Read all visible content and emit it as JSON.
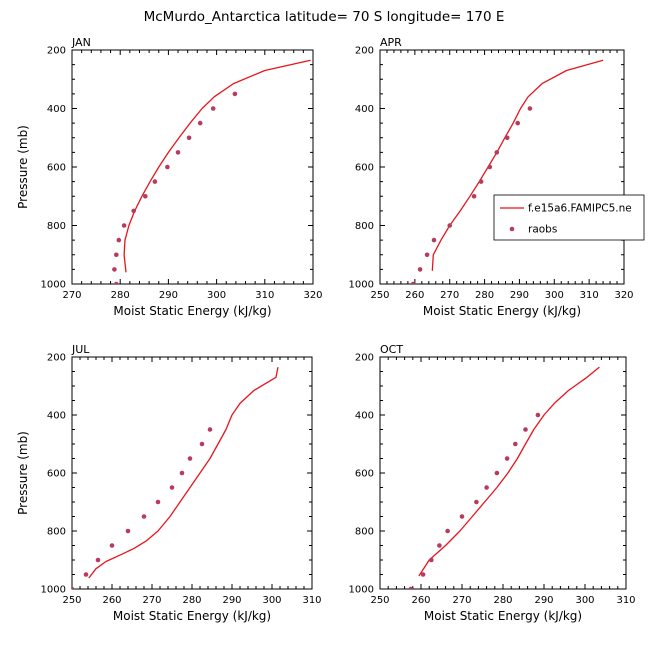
{
  "figure": {
    "title": "McMurdo_Antarctica  latitude= 70 S longitude= 170 E"
  },
  "legend": {
    "model_label": "f.e15a6.FAMIPC5.ne",
    "obs_label": "raobs",
    "model_color": "#e8141c",
    "obs_color": "#b83a5c"
  },
  "chart_data": [
    {
      "type": "line",
      "panel": "JAN",
      "title": "JAN",
      "xlabel": "Moist Static Energy (kJ/kg)",
      "ylabel": "Pressure (mb)",
      "xlim": [
        270,
        320
      ],
      "ylim": [
        1000,
        200
      ],
      "xticks": [
        270,
        280,
        290,
        300,
        310,
        320
      ],
      "yticks": [
        200,
        400,
        600,
        800,
        1000
      ],
      "series": [
        {
          "name": "f.e15a6.FAMIPC5.ne",
          "kind": "line",
          "points": [
            [
              281.2,
              960
            ],
            [
              280.8,
              900
            ],
            [
              281.0,
              850
            ],
            [
              281.8,
              800
            ],
            [
              283.0,
              750
            ],
            [
              284.5,
              700
            ],
            [
              286.2,
              650
            ],
            [
              288.0,
              600
            ],
            [
              290.0,
              550
            ],
            [
              292.2,
              500
            ],
            [
              294.5,
              450
            ],
            [
              297.0,
              400
            ],
            [
              299.5,
              360
            ],
            [
              303.5,
              315
            ],
            [
              310.0,
              270
            ],
            [
              319.5,
              235
            ]
          ]
        },
        {
          "name": "raobs",
          "kind": "scatter",
          "points": [
            [
              279.2,
              1000
            ],
            [
              278.8,
              950
            ],
            [
              279.2,
              900
            ],
            [
              279.7,
              850
            ],
            [
              280.8,
              800
            ],
            [
              282.8,
              750
            ],
            [
              285.2,
              700
            ],
            [
              287.2,
              650
            ],
            [
              289.8,
              600
            ],
            [
              292.0,
              550
            ],
            [
              294.3,
              500
            ],
            [
              296.6,
              450
            ],
            [
              299.3,
              400
            ],
            [
              303.8,
              350
            ]
          ]
        }
      ]
    },
    {
      "type": "line",
      "panel": "APR",
      "title": "APR",
      "xlabel": "Moist Static Energy (kJ/kg)",
      "ylabel": "",
      "xlim": [
        250,
        320
      ],
      "ylim": [
        1000,
        200
      ],
      "xticks": [
        250,
        260,
        270,
        280,
        290,
        300,
        310,
        320
      ],
      "yticks": [
        200,
        400,
        600,
        800,
        1000
      ],
      "series": [
        {
          "name": "f.e15a6.FAMIPC5.ne",
          "kind": "line",
          "points": [
            [
              265.0,
              955
            ],
            [
              265.3,
              900
            ],
            [
              267.5,
              850
            ],
            [
              270.0,
              800
            ],
            [
              273.0,
              750
            ],
            [
              275.8,
              700
            ],
            [
              278.5,
              650
            ],
            [
              281.0,
              600
            ],
            [
              283.5,
              550
            ],
            [
              285.8,
              500
            ],
            [
              288.2,
              450
            ],
            [
              290.3,
              400
            ],
            [
              292.5,
              360
            ],
            [
              296.5,
              315
            ],
            [
              303.5,
              270
            ],
            [
              314.0,
              235
            ]
          ]
        },
        {
          "name": "raobs",
          "kind": "scatter",
          "points": [
            [
              259.5,
              1000
            ],
            [
              261.5,
              950
            ],
            [
              263.5,
              900
            ],
            [
              265.5,
              850
            ],
            [
              270.0,
              800
            ],
            [
              277.0,
              700
            ],
            [
              279.0,
              650
            ],
            [
              281.5,
              600
            ],
            [
              283.5,
              550
            ],
            [
              286.5,
              500
            ],
            [
              289.5,
              450
            ],
            [
              293.0,
              400
            ]
          ]
        }
      ]
    },
    {
      "type": "line",
      "panel": "JUL",
      "title": "JUL",
      "xlabel": "Moist Static Energy (kJ/kg)",
      "ylabel": "Pressure (mb)",
      "xlim": [
        250,
        310
      ],
      "ylim": [
        1000,
        200
      ],
      "xticks": [
        250,
        260,
        270,
        280,
        290,
        300,
        310
      ],
      "yticks": [
        200,
        400,
        600,
        800,
        1000
      ],
      "series": [
        {
          "name": "f.e15a6.FAMIPC5.ne",
          "kind": "line",
          "points": [
            [
              254.2,
              962
            ],
            [
              256.0,
              930
            ],
            [
              258.5,
              905
            ],
            [
              262.5,
              880
            ],
            [
              265.5,
              860
            ],
            [
              268.5,
              835
            ],
            [
              271.5,
              800
            ],
            [
              274.5,
              750
            ],
            [
              277.0,
              700
            ],
            [
              279.5,
              650
            ],
            [
              282.0,
              600
            ],
            [
              284.5,
              550
            ],
            [
              286.5,
              500
            ],
            [
              288.5,
              450
            ],
            [
              290.0,
              400
            ],
            [
              292.0,
              360
            ],
            [
              295.5,
              315
            ],
            [
              301.0,
              270
            ],
            [
              301.5,
              235
            ]
          ]
        },
        {
          "name": "raobs",
          "kind": "scatter",
          "points": [
            [
              250.0,
              1000
            ],
            [
              253.5,
              950
            ],
            [
              256.5,
              900
            ],
            [
              260.0,
              850
            ],
            [
              264.0,
              800
            ],
            [
              268.0,
              750
            ],
            [
              271.5,
              700
            ],
            [
              275.0,
              650
            ],
            [
              277.5,
              600
            ],
            [
              279.5,
              550
            ],
            [
              282.5,
              500
            ],
            [
              284.5,
              450
            ]
          ]
        }
      ]
    },
    {
      "type": "line",
      "panel": "OCT",
      "title": "OCT",
      "xlabel": "Moist Static Energy (kJ/kg)",
      "ylabel": "",
      "xlim": [
        250,
        310
      ],
      "ylim": [
        1000,
        200
      ],
      "xticks": [
        250,
        260,
        270,
        280,
        290,
        300,
        310
      ],
      "yticks": [
        200,
        400,
        600,
        800,
        1000
      ],
      "series": [
        {
          "name": "f.e15a6.FAMIPC5.ne",
          "kind": "line",
          "points": [
            [
              259.5,
              955
            ],
            [
              262.0,
              900
            ],
            [
              266.0,
              850
            ],
            [
              269.5,
              800
            ],
            [
              272.5,
              750
            ],
            [
              275.5,
              700
            ],
            [
              278.5,
              650
            ],
            [
              281.2,
              600
            ],
            [
              283.5,
              550
            ],
            [
              285.5,
              500
            ],
            [
              287.5,
              450
            ],
            [
              290.0,
              400
            ],
            [
              292.5,
              360
            ],
            [
              296.0,
              315
            ],
            [
              300.5,
              270
            ],
            [
              303.5,
              235
            ]
          ]
        },
        {
          "name": "raobs",
          "kind": "scatter",
          "points": [
            [
              257.5,
              1000
            ],
            [
              260.5,
              950
            ],
            [
              262.5,
              900
            ],
            [
              264.5,
              850
            ],
            [
              266.5,
              800
            ],
            [
              270.0,
              750
            ],
            [
              273.5,
              700
            ],
            [
              276.0,
              650
            ],
            [
              278.5,
              600
            ],
            [
              281.0,
              550
            ],
            [
              283.0,
              500
            ],
            [
              285.5,
              450
            ],
            [
              288.5,
              400
            ]
          ]
        }
      ]
    }
  ]
}
